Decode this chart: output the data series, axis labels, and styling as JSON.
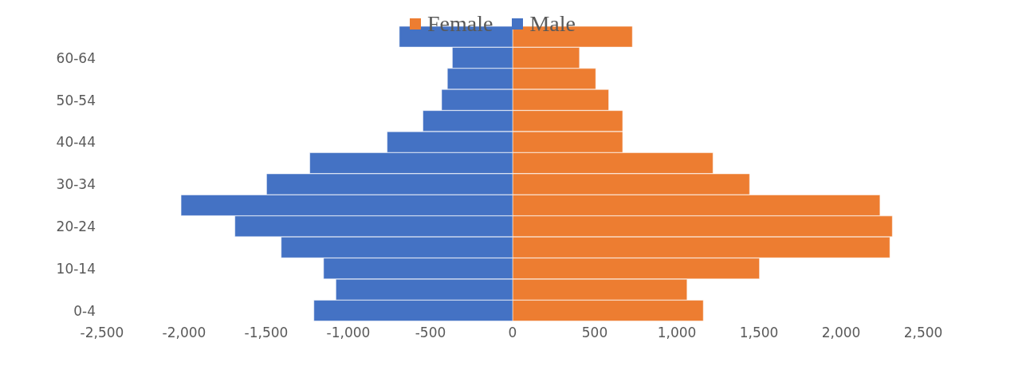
{
  "chart_data": {
    "type": "bar",
    "orientation": "horizontal",
    "stacked": true,
    "categories": [
      null,
      "60-64",
      null,
      "50-54",
      null,
      "40-44",
      null,
      "30-34",
      null,
      "20-24",
      null,
      "10-14",
      null,
      "0-4"
    ],
    "series": [
      {
        "name": "Female",
        "color": "#ed7d31",
        "values": [
          729,
          407,
          506,
          585,
          670,
          670,
          1220,
          1443,
          2237,
          2312,
          2297,
          1503,
          1062,
          1161
        ]
      },
      {
        "name": "Male",
        "color": "#4472c4",
        "values": [
          -690,
          -367,
          -397,
          -432,
          -546,
          -764,
          -1235,
          -1498,
          -2019,
          -1691,
          -1409,
          -1151,
          -1076,
          -1210
        ]
      }
    ],
    "xlim": [
      -2500,
      2500
    ],
    "xticks": [
      {
        "value": -2500,
        "label": "-2,500"
      },
      {
        "value": -2000,
        "label": "-2,000"
      },
      {
        "value": -1500,
        "label": "-1,500"
      },
      {
        "value": -1000,
        "label": "-1,000"
      },
      {
        "value": -500,
        "label": "-500"
      },
      0,
      500,
      {
        "value": 1000,
        "label": "1,000"
      },
      {
        "value": 1500,
        "label": "1,500"
      },
      {
        "value": 2000,
        "label": "2,000"
      },
      {
        "value": 2500,
        "label": "2,500"
      }
    ],
    "legend": "top",
    "grid": false
  }
}
